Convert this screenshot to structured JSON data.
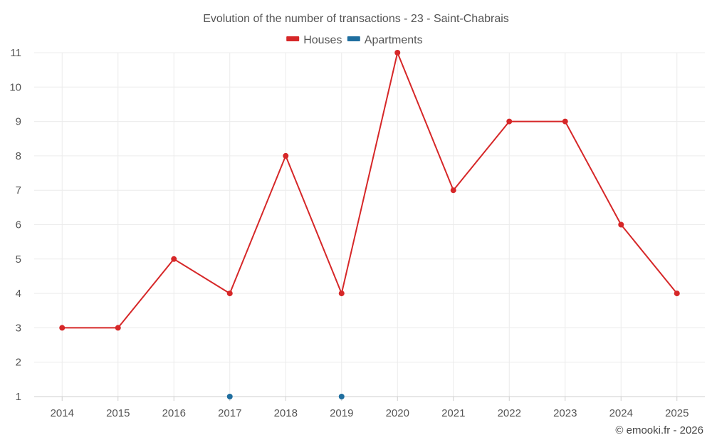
{
  "chart_data": {
    "type": "line",
    "title": "Evolution of the number of transactions - 23 - Saint-Chabrais",
    "categories": [
      "2014",
      "2015",
      "2016",
      "2017",
      "2018",
      "2019",
      "2020",
      "2021",
      "2022",
      "2023",
      "2024",
      "2025"
    ],
    "series": [
      {
        "name": "Houses",
        "color": "#d62728",
        "values": [
          3,
          3,
          5,
          4,
          8,
          4,
          11,
          7,
          9,
          9,
          6,
          4
        ]
      },
      {
        "name": "Apartments",
        "color": "#1f6e9f",
        "values": [
          null,
          null,
          null,
          1,
          null,
          1,
          null,
          null,
          null,
          null,
          null,
          null
        ]
      }
    ],
    "xlabel": "",
    "ylabel": "",
    "ylim": [
      1,
      11
    ],
    "yticks": [
      "1",
      "2",
      "3",
      "4",
      "5",
      "6",
      "7",
      "8",
      "9",
      "10",
      "11"
    ],
    "grid": true,
    "legend_position": "top-center"
  },
  "credit": "© emooki.fr - 2026"
}
